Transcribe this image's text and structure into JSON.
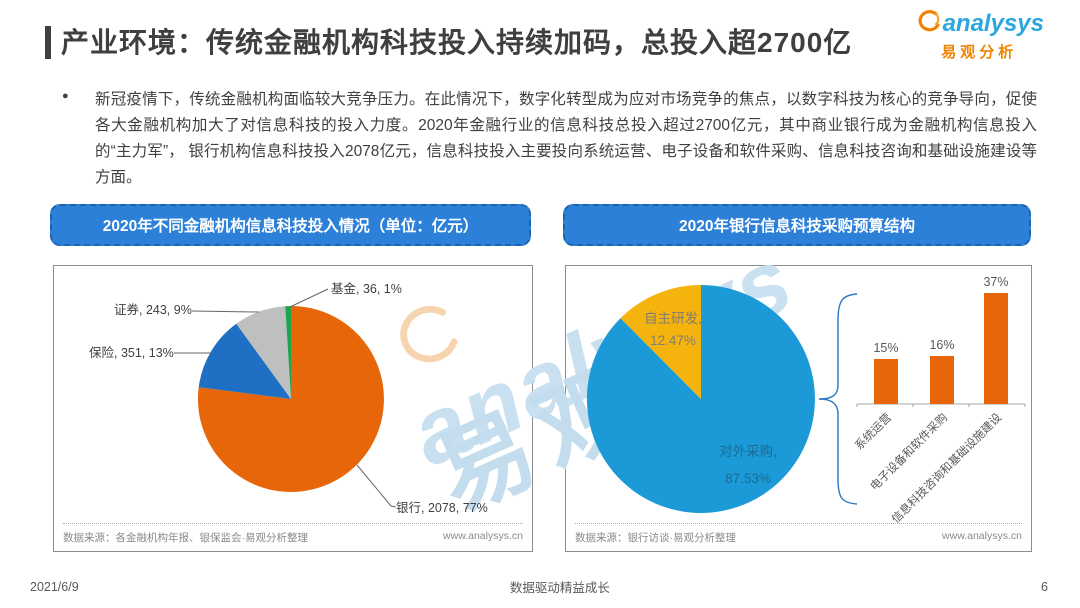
{
  "page": {
    "title": "产业环境：传统金融机构科技投入持续加码，总投入超2700亿",
    "bullet": "●",
    "bullet_text": "新冠疫情下，传统金融机构面临较大竞争压力。在此情况下，数字化转型成为应对市场竞争的焦点，以数字科技为核心的竞争导向，促使各大金融机构加大了对信息科技的投入力度。2020年金融行业的信息科技总投入超过2700亿元，其中商业银行成为金融机构信息投入的“主力军”， 银行机构信息科技投入2078亿元，信息科技投入主要投向系统运营、电子设备和软件采购、信息科技咨询和基础设施建设等方面。",
    "logo": {
      "brand": "analysys",
      "brand_cn": "易观分析"
    },
    "watermark": {
      "en": "analysys",
      "cn": "易观"
    },
    "footer": {
      "date": "2021/6/9",
      "slogan": "数据驱动精益成长",
      "page_number": "6"
    }
  },
  "left_chart": {
    "header": "2020年不同金融机构信息科技投入情况（单位：亿元）",
    "source": "数据来源：各金融机构年报、银保监会·易观分析整理",
    "website": "www.analysys.cn"
  },
  "right_chart": {
    "header": "2020年银行信息科技采购预算结构",
    "source": "数据来源：银行访谈·易观分析整理",
    "website": "www.analysys.cn"
  },
  "chart_data": [
    {
      "type": "pie",
      "title": "2020年不同金融机构信息科技投入情况（单位：亿元）",
      "categories": [
        "银行",
        "保险",
        "证券",
        "基金"
      ],
      "values": [
        2078,
        351,
        243,
        36
      ],
      "percents": [
        77,
        13,
        9,
        1
      ],
      "labels": [
        "银行, 2078, 77%",
        "保险, 351, 13%",
        "证券, 243, 9%",
        "基金, 36, 1%"
      ],
      "colors": [
        "#E7660A",
        "#1F6FC5",
        "#BFBFBF",
        "#1DA74C"
      ],
      "start_angle_deg": 0,
      "clockwise": true,
      "legend": "none, outside data labels with leader lines"
    },
    {
      "type": "pie",
      "title": "2020年银行信息科技采购预算结构",
      "categories": [
        "对外采购",
        "自主研发"
      ],
      "values": [
        87.53,
        12.47
      ],
      "labels": [
        [
          "对外采购,",
          "87.53%"
        ],
        [
          "自主研发,",
          "12.47%"
        ]
      ],
      "colors": [
        "#1B9AD7",
        "#F5B40D"
      ],
      "start_angle_deg": 0,
      "clockwise": true,
      "legend": "none, inside data labels"
    },
    {
      "type": "bar",
      "title": "对外采购结构明细",
      "categories": [
        "系统运营",
        "电子设备和软件采购",
        "信息科技咨询和基础设施建设"
      ],
      "values": [
        15,
        16,
        37
      ],
      "value_labels": [
        "15%",
        "16%",
        "37%"
      ],
      "color": "#E7660A",
      "ylim": [
        0,
        40
      ],
      "grid": "off",
      "category_label_rotation_deg": -45
    }
  ]
}
